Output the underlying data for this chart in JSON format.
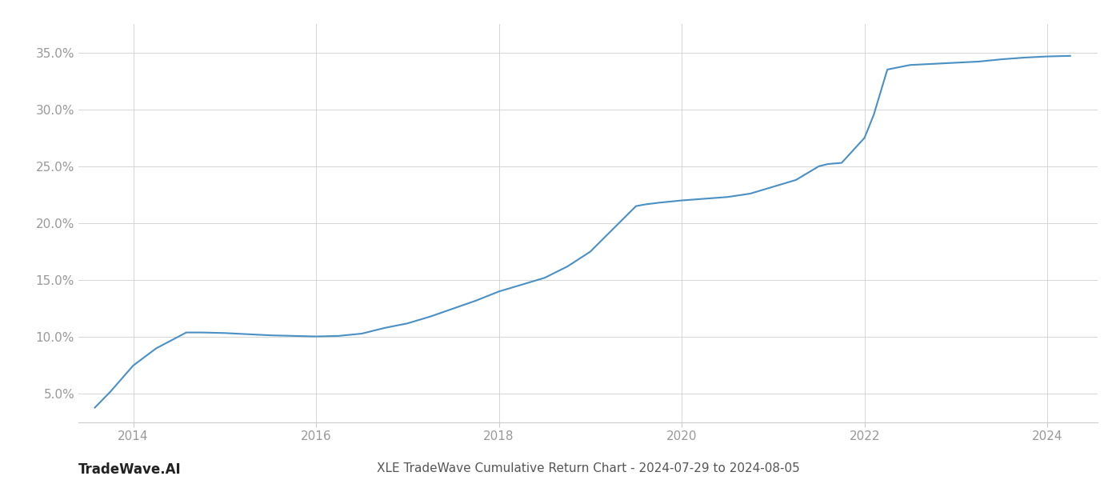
{
  "title": "XLE TradeWave Cumulative Return Chart - 2024-07-29 to 2024-08-05",
  "watermark": "TradeWave.AI",
  "line_color": "#4a90c4",
  "background_color": "#ffffff",
  "grid_color": "#d0d0d0",
  "x_values": [
    2013.58,
    2013.75,
    2014.0,
    2014.25,
    2014.58,
    2014.75,
    2015.0,
    2015.25,
    2015.5,
    2015.75,
    2016.0,
    2016.25,
    2016.5,
    2016.75,
    2017.0,
    2017.25,
    2017.5,
    2017.75,
    2018.0,
    2018.25,
    2018.5,
    2018.75,
    2019.0,
    2019.25,
    2019.5,
    2019.6,
    2019.75,
    2020.0,
    2020.25,
    2020.5,
    2020.75,
    2021.0,
    2021.25,
    2021.5,
    2021.6,
    2021.75,
    2022.0,
    2022.1,
    2022.25,
    2022.5,
    2022.75,
    2023.0,
    2023.25,
    2023.5,
    2023.75,
    2024.0,
    2024.25
  ],
  "y_values": [
    3.8,
    5.2,
    7.5,
    9.0,
    10.4,
    10.4,
    10.35,
    10.25,
    10.15,
    10.1,
    10.05,
    10.1,
    10.3,
    10.8,
    11.2,
    11.8,
    12.5,
    13.2,
    14.0,
    14.6,
    15.2,
    16.2,
    17.5,
    19.5,
    21.5,
    21.65,
    21.8,
    22.0,
    22.15,
    22.3,
    22.6,
    23.2,
    23.8,
    25.0,
    25.2,
    25.3,
    27.5,
    29.5,
    33.5,
    33.9,
    34.0,
    34.1,
    34.2,
    34.4,
    34.55,
    34.65,
    34.7
  ],
  "xlim": [
    2013.4,
    2024.55
  ],
  "ylim": [
    2.5,
    37.5
  ],
  "yticks": [
    5.0,
    10.0,
    15.0,
    20.0,
    25.0,
    30.0,
    35.0
  ],
  "xticks": [
    2014,
    2016,
    2018,
    2020,
    2022,
    2024
  ],
  "tick_color": "#999999",
  "title_fontsize": 11,
  "watermark_fontsize": 12,
  "line_width": 1.5
}
